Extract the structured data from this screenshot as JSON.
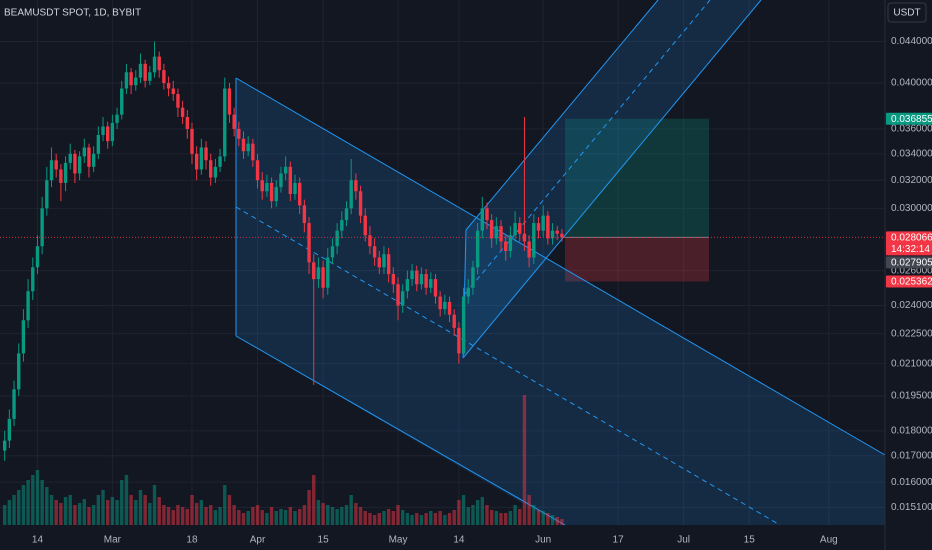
{
  "header": {
    "symbol": "BEAMUSDT SPOT, 1D, BYBIT",
    "currency": "USDT"
  },
  "chart_data": {
    "type": "candlestick",
    "log_scale": true,
    "grid": true,
    "up_color": "#089981",
    "down_color": "#f23645",
    "ylim": [
      0.0145,
      0.0484
    ],
    "yticks": [
      {
        "value": 0.044,
        "label": "0.044000"
      },
      {
        "value": 0.04,
        "label": "0.040000"
      },
      {
        "value": 0.036,
        "label": "0.036000"
      },
      {
        "value": 0.034,
        "label": "0.034000"
      },
      {
        "value": 0.032,
        "label": "0.032000"
      },
      {
        "value": 0.03,
        "label": "0.030000"
      },
      {
        "value": 0.026,
        "label": "0.026000"
      },
      {
        "value": 0.024,
        "label": "0.024000"
      },
      {
        "value": 0.0225,
        "label": "0.022500"
      },
      {
        "value": 0.021,
        "label": "0.021000"
      },
      {
        "value": 0.0195,
        "label": "0.019500"
      },
      {
        "value": 0.018,
        "label": "0.018000"
      },
      {
        "value": 0.017,
        "label": "0.017000"
      },
      {
        "value": 0.016,
        "label": "0.016000"
      },
      {
        "value": 0.0151,
        "label": "0.015100"
      }
    ],
    "xlim": [
      "02-06",
      "08-13"
    ],
    "xticks": [
      {
        "value": "02-14",
        "label": "14"
      },
      {
        "value": "03-01",
        "label": "Mar"
      },
      {
        "value": "03-18",
        "label": "18"
      },
      {
        "value": "04-01",
        "label": "Apr"
      },
      {
        "value": "04-15",
        "label": "15"
      },
      {
        "value": "05-01",
        "label": "May"
      },
      {
        "value": "05-14",
        "label": "14"
      },
      {
        "value": "06-01",
        "label": "Jun"
      },
      {
        "value": "06-17",
        "label": "17"
      },
      {
        "value": "07-01",
        "label": "Jul"
      },
      {
        "value": "07-15",
        "label": "15"
      },
      {
        "value": "08-01",
        "label": "Aug"
      }
    ],
    "x": [
      "02-07",
      "02-08",
      "02-09",
      "02-10",
      "02-11",
      "02-12",
      "02-13",
      "02-14",
      "02-15",
      "02-16",
      "02-17",
      "02-18",
      "02-19",
      "02-20",
      "02-21",
      "02-22",
      "02-23",
      "02-24",
      "02-25",
      "02-26",
      "02-27",
      "02-28",
      "02-29",
      "03-01",
      "03-02",
      "03-03",
      "03-04",
      "03-05",
      "03-06",
      "03-07",
      "03-08",
      "03-09",
      "03-10",
      "03-11",
      "03-12",
      "03-13",
      "03-14",
      "03-15",
      "03-16",
      "03-17",
      "03-18",
      "03-19",
      "03-20",
      "03-21",
      "03-22",
      "03-23",
      "03-24",
      "03-25",
      "03-26",
      "03-27",
      "03-28",
      "03-29",
      "03-30",
      "03-31",
      "04-01",
      "04-02",
      "04-03",
      "04-04",
      "04-05",
      "04-06",
      "04-07",
      "04-08",
      "04-09",
      "04-10",
      "04-11",
      "04-12",
      "04-13",
      "04-14",
      "04-15",
      "04-16",
      "04-17",
      "04-18",
      "04-19",
      "04-20",
      "04-21",
      "04-22",
      "04-23",
      "04-24",
      "04-25",
      "04-26",
      "04-27",
      "04-28",
      "04-29",
      "04-30",
      "05-01",
      "05-02",
      "05-03",
      "05-04",
      "05-05",
      "05-06",
      "05-07",
      "05-08",
      "05-09",
      "05-10",
      "05-11",
      "05-12",
      "05-13",
      "05-14",
      "05-15",
      "05-16",
      "05-17",
      "05-18",
      "05-19",
      "05-20",
      "05-21",
      "05-22",
      "05-23",
      "05-24",
      "05-25",
      "05-26",
      "05-27",
      "05-28",
      "05-29",
      "05-30",
      "05-31",
      "06-01",
      "06-02",
      "06-03",
      "06-04",
      "06-05"
    ],
    "ohlc": [
      [
        0.0172,
        0.018,
        0.0168,
        0.0176
      ],
      [
        0.0176,
        0.0189,
        0.0173,
        0.0185
      ],
      [
        0.0185,
        0.0202,
        0.0182,
        0.0198
      ],
      [
        0.0198,
        0.022,
        0.0195,
        0.0215
      ],
      [
        0.0215,
        0.0238,
        0.0211,
        0.0232
      ],
      [
        0.0232,
        0.0255,
        0.0228,
        0.0248
      ],
      [
        0.0248,
        0.0268,
        0.0243,
        0.0262
      ],
      [
        0.0262,
        0.0282,
        0.0258,
        0.0275
      ],
      [
        0.0275,
        0.0308,
        0.027,
        0.03
      ],
      [
        0.03,
        0.033,
        0.0295,
        0.032
      ],
      [
        0.032,
        0.0345,
        0.0315,
        0.0335
      ],
      [
        0.0335,
        0.034,
        0.0322,
        0.0328
      ],
      [
        0.0328,
        0.0332,
        0.0305,
        0.0318
      ],
      [
        0.0318,
        0.0338,
        0.0312,
        0.0333
      ],
      [
        0.0333,
        0.0348,
        0.0328,
        0.034
      ],
      [
        0.034,
        0.0343,
        0.0318,
        0.0325
      ],
      [
        0.0325,
        0.0342,
        0.032,
        0.0338
      ],
      [
        0.0338,
        0.0352,
        0.0333,
        0.0345
      ],
      [
        0.0345,
        0.0348,
        0.0322,
        0.033
      ],
      [
        0.033,
        0.0346,
        0.0326,
        0.034
      ],
      [
        0.034,
        0.0362,
        0.0336,
        0.0355
      ],
      [
        0.0355,
        0.037,
        0.035,
        0.0362
      ],
      [
        0.0362,
        0.0366,
        0.0344,
        0.035
      ],
      [
        0.035,
        0.0372,
        0.0346,
        0.0365
      ],
      [
        0.0365,
        0.0378,
        0.036,
        0.0372
      ],
      [
        0.0372,
        0.0402,
        0.0368,
        0.0395
      ],
      [
        0.0395,
        0.0418,
        0.039,
        0.041
      ],
      [
        0.041,
        0.0414,
        0.039,
        0.0398
      ],
      [
        0.0398,
        0.0412,
        0.0393,
        0.0405
      ],
      [
        0.0405,
        0.0428,
        0.04,
        0.0418
      ],
      [
        0.0418,
        0.0422,
        0.0396,
        0.0402
      ],
      [
        0.0402,
        0.0416,
        0.0398,
        0.041
      ],
      [
        0.041,
        0.044,
        0.0405,
        0.0425
      ],
      [
        0.0425,
        0.043,
        0.0405,
        0.0412
      ],
      [
        0.0412,
        0.0418,
        0.0394,
        0.04
      ],
      [
        0.04,
        0.0406,
        0.0388,
        0.0395
      ],
      [
        0.0395,
        0.0402,
        0.0384,
        0.039
      ],
      [
        0.039,
        0.0395,
        0.037,
        0.0378
      ],
      [
        0.0378,
        0.0384,
        0.0364,
        0.037
      ],
      [
        0.037,
        0.0376,
        0.0352,
        0.036
      ],
      [
        0.036,
        0.0365,
        0.0332,
        0.034
      ],
      [
        0.034,
        0.0346,
        0.032,
        0.0328
      ],
      [
        0.0328,
        0.0352,
        0.0324,
        0.0345
      ],
      [
        0.0345,
        0.035,
        0.0328,
        0.0335
      ],
      [
        0.0335,
        0.034,
        0.0316,
        0.0322
      ],
      [
        0.0322,
        0.0336,
        0.0318,
        0.033
      ],
      [
        0.033,
        0.0344,
        0.0326,
        0.0338
      ],
      [
        0.0338,
        0.0405,
        0.0334,
        0.0395
      ],
      [
        0.0395,
        0.04,
        0.0365,
        0.0372
      ],
      [
        0.0372,
        0.0378,
        0.0354,
        0.036
      ],
      [
        0.036,
        0.0366,
        0.0346,
        0.0352
      ],
      [
        0.0352,
        0.0358,
        0.0336,
        0.0342
      ],
      [
        0.0342,
        0.0354,
        0.0338,
        0.0348
      ],
      [
        0.0348,
        0.0352,
        0.033,
        0.0335
      ],
      [
        0.0335,
        0.034,
        0.0314,
        0.032
      ],
      [
        0.032,
        0.0326,
        0.0306,
        0.0312
      ],
      [
        0.0312,
        0.0324,
        0.0308,
        0.0318
      ],
      [
        0.0318,
        0.0322,
        0.03,
        0.0305
      ],
      [
        0.0305,
        0.032,
        0.0301,
        0.0315
      ],
      [
        0.0315,
        0.033,
        0.0311,
        0.0325
      ],
      [
        0.0325,
        0.0338,
        0.032,
        0.033
      ],
      [
        0.033,
        0.0334,
        0.0305,
        0.031
      ],
      [
        0.031,
        0.0324,
        0.0306,
        0.0318
      ],
      [
        0.0318,
        0.0322,
        0.0296,
        0.0302
      ],
      [
        0.0302,
        0.0306,
        0.0284,
        0.029
      ],
      [
        0.029,
        0.0294,
        0.0258,
        0.0265
      ],
      [
        0.0265,
        0.027,
        0.02,
        0.0255
      ],
      [
        0.0255,
        0.0268,
        0.025,
        0.0262
      ],
      [
        0.0262,
        0.0266,
        0.0244,
        0.025
      ],
      [
        0.025,
        0.0274,
        0.0246,
        0.0268
      ],
      [
        0.0268,
        0.028,
        0.0264,
        0.0275
      ],
      [
        0.0275,
        0.029,
        0.027,
        0.0285
      ],
      [
        0.0285,
        0.0298,
        0.028,
        0.0292
      ],
      [
        0.0292,
        0.0305,
        0.0288,
        0.03
      ],
      [
        0.03,
        0.0336,
        0.0296,
        0.032
      ],
      [
        0.032,
        0.0325,
        0.0306,
        0.0312
      ],
      [
        0.0312,
        0.0316,
        0.029,
        0.0295
      ],
      [
        0.0295,
        0.03,
        0.0278,
        0.0282
      ],
      [
        0.0282,
        0.0288,
        0.027,
        0.0275
      ],
      [
        0.0275,
        0.028,
        0.0263,
        0.0268
      ],
      [
        0.0268,
        0.0272,
        0.0258,
        0.0262
      ],
      [
        0.0262,
        0.0275,
        0.0258,
        0.027
      ],
      [
        0.027,
        0.0274,
        0.0253,
        0.0258
      ],
      [
        0.0258,
        0.0262,
        0.0247,
        0.0252
      ],
      [
        0.0252,
        0.0256,
        0.0232,
        0.024
      ],
      [
        0.024,
        0.0252,
        0.0236,
        0.0248
      ],
      [
        0.0248,
        0.026,
        0.0244,
        0.0255
      ],
      [
        0.0255,
        0.0264,
        0.0251,
        0.026
      ],
      [
        0.026,
        0.0263,
        0.0248,
        0.0252
      ],
      [
        0.0252,
        0.0262,
        0.0249,
        0.0258
      ],
      [
        0.0258,
        0.0261,
        0.0246,
        0.025
      ],
      [
        0.025,
        0.0259,
        0.0247,
        0.0255
      ],
      [
        0.0255,
        0.0258,
        0.0241,
        0.0245
      ],
      [
        0.0245,
        0.0248,
        0.0234,
        0.0238
      ],
      [
        0.0238,
        0.0246,
        0.0235,
        0.0242
      ],
      [
        0.0242,
        0.0245,
        0.0231,
        0.0235
      ],
      [
        0.0235,
        0.0238,
        0.0224,
        0.0228
      ],
      [
        0.0228,
        0.0231,
        0.021,
        0.0215
      ],
      [
        0.0215,
        0.025,
        0.0213,
        0.0245
      ],
      [
        0.0245,
        0.0255,
        0.0241,
        0.025
      ],
      [
        0.025,
        0.0266,
        0.0246,
        0.0262
      ],
      [
        0.0262,
        0.029,
        0.0258,
        0.0285
      ],
      [
        0.0285,
        0.0308,
        0.028,
        0.03
      ],
      [
        0.03,
        0.0304,
        0.0286,
        0.0292
      ],
      [
        0.0292,
        0.0296,
        0.0274,
        0.028
      ],
      [
        0.028,
        0.0294,
        0.0276,
        0.0288
      ],
      [
        0.0288,
        0.0292,
        0.0272,
        0.0278
      ],
      [
        0.0278,
        0.0282,
        0.0266,
        0.0272
      ],
      [
        0.0272,
        0.0288,
        0.0268,
        0.0282
      ],
      [
        0.0282,
        0.0298,
        0.0278,
        0.029
      ],
      [
        0.029,
        0.0294,
        0.0278,
        0.0283
      ],
      [
        0.0283,
        0.037,
        0.0272,
        0.0278
      ],
      [
        0.0278,
        0.0282,
        0.0262,
        0.0268
      ],
      [
        0.0268,
        0.0296,
        0.0264,
        0.029
      ],
      [
        0.029,
        0.0294,
        0.028,
        0.0285
      ],
      [
        0.0285,
        0.0302,
        0.0281,
        0.0295
      ],
      [
        0.0295,
        0.0298,
        0.0276,
        0.028
      ],
      [
        0.028,
        0.029,
        0.0276,
        0.0285
      ],
      [
        0.0285,
        0.0288,
        0.0279,
        0.0283
      ],
      [
        0.0283,
        0.0286,
        0.0278,
        0.028066
      ]
    ],
    "volume": [
      20,
      25,
      30,
      35,
      40,
      45,
      50,
      55,
      45,
      38,
      30,
      25,
      22,
      28,
      30,
      20,
      22,
      26,
      18,
      20,
      30,
      35,
      25,
      28,
      25,
      45,
      50,
      30,
      25,
      35,
      30,
      22,
      40,
      28,
      20,
      18,
      15,
      20,
      18,
      16,
      30,
      22,
      25,
      18,
      20,
      15,
      18,
      40,
      30,
      20,
      15,
      12,
      14,
      18,
      20,
      15,
      12,
      18,
      14,
      16,
      15,
      18,
      14,
      16,
      20,
      35,
      50,
      25,
      22,
      20,
      18,
      16,
      18,
      20,
      30,
      22,
      18,
      14,
      12,
      10,
      12,
      14,
      16,
      14,
      20,
      15,
      12,
      10,
      12,
      10,
      12,
      14,
      12,
      14,
      10,
      12,
      15,
      25,
      30,
      18,
      20,
      25,
      28,
      20,
      15,
      14,
      12,
      12,
      14,
      20,
      16,
      130,
      30,
      20,
      15,
      14,
      12,
      10,
      8,
      6
    ],
    "last_price": {
      "value": 0.028066,
      "countdown": "14:32:14",
      "color": "#f23645"
    },
    "price_line": {
      "value": 0.027905,
      "color": "#434651"
    },
    "position": {
      "target": 0.036855,
      "stop": 0.025362,
      "target_color": "#089981",
      "stop_color": "#f23645"
    }
  }
}
